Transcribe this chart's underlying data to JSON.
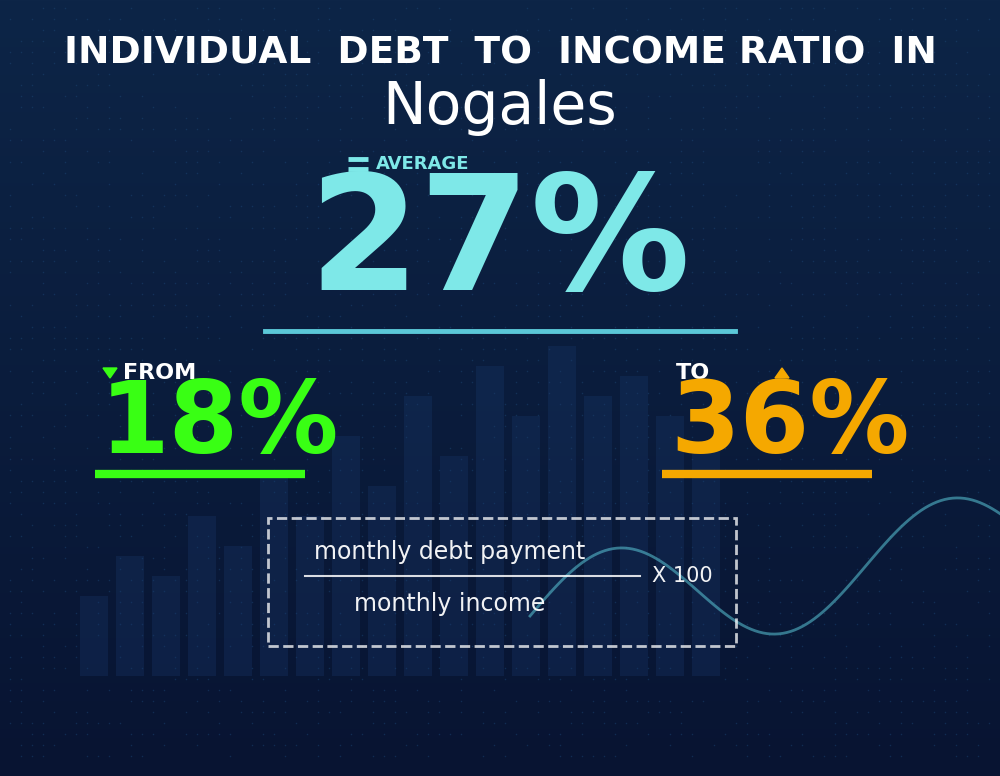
{
  "title_line1": "INDIVIDUAL  DEBT  TO  INCOME RATIO  IN",
  "title_line2": "Nogales",
  "avg_label": "AVERAGE",
  "avg_value": "27%",
  "from_label": "FROM",
  "from_value": "18%",
  "to_label": "TO",
  "to_value": "36%",
  "formula_line1": "monthly debt payment",
  "formula_line2": "monthly income",
  "formula_x100": "X 100",
  "bg_color_top": "#0d2547",
  "bg_color_bottom": "#0a1e3d",
  "avg_color": "#7ee8e8",
  "from_color": "#39ff14",
  "to_color": "#f5a800",
  "white_color": "#ffffff",
  "separator_color": "#5bc8d8",
  "from_line_color": "#39ff14",
  "to_line_color": "#f5a800"
}
